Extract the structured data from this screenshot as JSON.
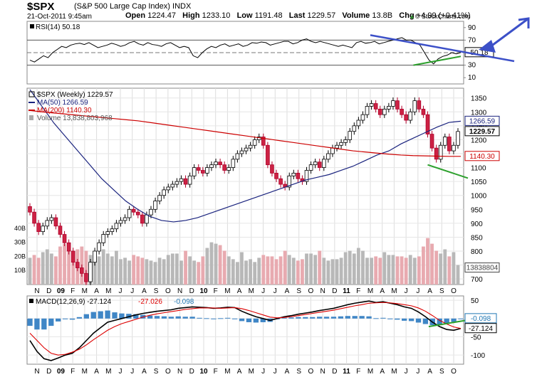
{
  "header": {
    "ticker": "$SPX",
    "company": "(S&P 500 Large Cap Index)",
    "exchange": "INDX",
    "date": "21-Oct-2011 9:45am",
    "open_label": "Open",
    "open": "1224.47",
    "high_label": "High",
    "high": "1233.10",
    "low_label": "Low",
    "low": "1191.48",
    "last_label": "Last",
    "last": "1229.57",
    "volume_label": "Volume",
    "volume": "13.8B",
    "chg_label": "Chg",
    "chg": "+4.99 (+0.41%)",
    "credit": "© StockCharts.com"
  },
  "chart_data": [
    {
      "type": "line",
      "panel": "RSI",
      "legend": "RSI(14) 50.18",
      "yticks": [
        10,
        30,
        50,
        70,
        90
      ],
      "ylim": [
        0,
        100
      ],
      "reference_lines": [
        30,
        70
      ],
      "current_value": 50.18,
      "current_label": "50.18",
      "series": [
        {
          "name": "RSI(14)",
          "values": [
            38,
            35,
            40,
            45,
            42,
            50,
            55,
            60,
            58,
            62,
            64,
            65,
            63,
            66,
            62,
            58,
            60,
            62,
            65,
            63,
            60,
            62,
            66,
            68,
            64,
            62,
            66,
            63,
            62,
            60,
            64,
            66,
            62,
            58,
            60,
            58,
            45,
            42,
            50,
            56,
            60,
            58,
            62,
            64,
            60,
            62,
            64,
            60,
            62,
            66,
            65,
            67,
            66,
            62,
            64,
            66,
            68,
            68,
            64,
            66,
            70,
            72,
            68,
            66,
            68,
            66,
            64,
            62,
            60,
            62,
            60,
            58,
            66,
            68,
            65,
            66,
            68,
            64,
            66,
            68,
            70,
            72,
            74,
            70,
            70,
            66,
            62,
            50,
            38,
            32,
            40,
            44,
            46,
            50,
            48,
            50.18
          ],
          "color": "#000000"
        }
      ],
      "annotations": [
        {
          "kind": "trendline",
          "color": "#3c50c8",
          "from": [
            79,
            78
          ],
          "to": [
            100,
            62
          ]
        },
        {
          "kind": "trendline",
          "color": "#2ca02c",
          "from": [
            89,
            30
          ],
          "to": [
            100,
            44
          ]
        }
      ]
    },
    {
      "type": "candlestick",
      "panel": "price",
      "legend": [
        "$SPX (Weekly) 1229.57",
        "MA(50) 1266.59",
        "MA(200) 1140.30",
        "Volume 13,838,803,968"
      ],
      "x_ticks": [
        "N",
        "D",
        "09",
        "F",
        "M",
        "A",
        "M",
        "J",
        "J",
        "A",
        "S",
        "O",
        "N",
        "D",
        "10",
        "F",
        "M",
        "A",
        "M",
        "J",
        "J",
        "A",
        "S",
        "O",
        "N",
        "D",
        "11",
        "F",
        "M",
        "A",
        "M",
        "J",
        "J",
        "A",
        "S",
        "O"
      ],
      "yticks": [
        700,
        750,
        800,
        850,
        900,
        950,
        1000,
        1050,
        1100,
        1150,
        1200,
        1250,
        1300,
        1350
      ],
      "ylim": [
        680,
        1385
      ],
      "volume_ticks": [
        "10B",
        "20B",
        "30B",
        "40B"
      ],
      "volume_ylim": [
        0,
        48
      ],
      "badges": [
        {
          "label": "1266.59",
          "value": 1266.59,
          "color": "#1a237e"
        },
        {
          "label": "1229.57",
          "value": 1229.57,
          "color": "#000000",
          "bold": true
        },
        {
          "label": "1140.30",
          "value": 1140.3,
          "color": "#cc0000"
        },
        {
          "label": "13838804",
          "volume": 13.84,
          "color": "#444444"
        }
      ],
      "close": [
        940,
        900,
        870,
        890,
        910,
        920,
        890,
        860,
        830,
        800,
        760,
        740,
        720,
        690,
        760,
        800,
        830,
        860,
        870,
        880,
        900,
        910,
        920,
        950,
        940,
        930,
        900,
        930,
        950,
        980,
        1000,
        1020,
        1030,
        1040,
        1050,
        1060,
        1040,
        1070,
        1100,
        1090,
        1080,
        1100,
        1110,
        1120,
        1110,
        1090,
        1100,
        1130,
        1150,
        1160,
        1170,
        1180,
        1200,
        1210,
        1180,
        1110,
        1080,
        1060,
        1040,
        1030,
        1070,
        1080,
        1060,
        1050,
        1090,
        1110,
        1120,
        1100,
        1130,
        1150,
        1170,
        1180,
        1190,
        1200,
        1230,
        1250,
        1270,
        1290,
        1320,
        1330,
        1310,
        1290,
        1310,
        1320,
        1340,
        1310,
        1290,
        1270,
        1300,
        1340,
        1310,
        1290,
        1220,
        1170,
        1130,
        1180,
        1210,
        1160,
        1180,
        1229.57
      ],
      "volume": [
        19,
        21,
        19,
        23,
        25,
        22,
        20,
        27,
        29,
        28,
        24,
        25,
        27,
        24,
        21,
        22,
        20,
        25,
        22,
        20,
        24,
        18,
        19,
        17,
        21,
        20,
        19,
        18,
        17,
        16,
        19,
        18,
        21,
        22,
        22,
        17,
        24,
        20,
        17,
        16,
        20,
        26,
        30,
        29,
        28,
        24,
        20,
        18,
        16,
        23,
        17,
        18,
        16,
        19,
        21,
        20,
        20,
        18,
        20,
        24,
        21,
        19,
        17,
        18,
        22,
        22,
        21,
        24,
        19,
        17,
        18,
        18,
        19,
        23,
        24,
        22,
        26,
        24,
        19,
        19,
        20,
        19,
        23,
        21,
        21,
        20,
        20,
        19,
        21,
        19,
        20,
        27,
        33,
        29,
        24,
        22,
        25,
        20,
        23,
        13.84
      ],
      "series": [
        {
          "name": "MA(50)",
          "color": "#1a237e",
          "values": [
            1380,
            1320,
            1260,
            1210,
            1160,
            1110,
            1060,
            1020,
            980,
            950,
            925,
            910,
            905,
            910,
            920,
            935,
            950,
            965,
            980,
            995,
            1010,
            1025,
            1040,
            1055,
            1065,
            1075,
            1090,
            1105,
            1125,
            1145,
            1160,
            1185,
            1205,
            1225,
            1245,
            1262,
            1266.59
          ]
        },
        {
          "name": "MA(200)",
          "color": "#cc0000",
          "values": [
            1305,
            1300,
            1296,
            1292,
            1288,
            1284,
            1280,
            1276,
            1272,
            1268,
            1262,
            1256,
            1250,
            1244,
            1238,
            1232,
            1226,
            1220,
            1214,
            1208,
            1202,
            1196,
            1190,
            1184,
            1178,
            1172,
            1166,
            1160,
            1156,
            1152,
            1148,
            1145,
            1143,
            1142,
            1141,
            1140.3,
            1140.3
          ]
        }
      ],
      "annotations": [
        {
          "kind": "trendline",
          "color": "#2ca02c",
          "from": [
            92,
            1110
          ],
          "to": [
            100,
            1062
          ]
        }
      ]
    },
    {
      "type": "line",
      "panel": "MACD",
      "legend": [
        "MACD(12,26,9) -27.124",
        "-27.026",
        "-0.098"
      ],
      "yticks": [
        -100,
        -50,
        0,
        50
      ],
      "ylim": [
        -125,
        62
      ],
      "badges": [
        {
          "label": "-0.098",
          "value": -0.098,
          "color": "#1f77b4"
        },
        {
          "label": "-27.124",
          "value": -27.124,
          "color": "#000000"
        }
      ],
      "series": [
        {
          "name": "MACD(12,26,9)",
          "color": "#000000",
          "values": [
            -60,
            -90,
            -110,
            -115,
            -108,
            -100,
            -95,
            -80,
            -60,
            -40,
            -25,
            -10,
            -5,
            0,
            5,
            10,
            14,
            17,
            20,
            22,
            24,
            28,
            30,
            32,
            31,
            30,
            28,
            29,
            31,
            30,
            20,
            12,
            5,
            0,
            -5,
            0,
            5,
            8,
            12,
            15,
            18,
            22,
            25,
            28,
            33,
            38,
            42,
            45,
            48,
            44,
            46,
            42,
            38,
            32,
            28,
            18,
            5,
            -10,
            -22,
            -30,
            -32,
            -27.124
          ]
        },
        {
          "name": "Signal",
          "color": "#dd0000",
          "values": [
            -40,
            -60,
            -80,
            -95,
            -100,
            -98,
            -92,
            -84,
            -72,
            -58,
            -45,
            -32,
            -22,
            -14,
            -8,
            -2,
            4,
            9,
            13,
            16,
            19,
            22,
            25,
            27,
            29,
            29,
            29,
            28,
            29,
            30,
            27,
            22,
            16,
            10,
            4,
            2,
            3,
            5,
            8,
            11,
            14,
            17,
            20,
            23,
            27,
            31,
            35,
            38,
            42,
            43,
            44,
            43,
            41,
            38,
            35,
            29,
            20,
            8,
            -5,
            -15,
            -23,
            -27.026
          ]
        },
        {
          "name": "Histogram",
          "color": "#1f77b4",
          "values": [
            -20,
            -30,
            -30,
            -20,
            -8,
            -2,
            -3,
            4,
            12,
            18,
            20,
            22,
            17,
            14,
            13,
            12,
            10,
            8,
            7,
            6,
            5,
            6,
            5,
            5,
            2,
            1,
            -1,
            1,
            2,
            0,
            -7,
            -10,
            -11,
            -10,
            -9,
            -2,
            2,
            3,
            4,
            4,
            4,
            5,
            5,
            5,
            6,
            7,
            7,
            7,
            6,
            1,
            2,
            -1,
            -3,
            -6,
            -7,
            -11,
            -15,
            -18,
            -17,
            -15,
            -9,
            -0.098
          ]
        }
      ],
      "annotations": [
        {
          "kind": "trendline",
          "color": "#2ca02c",
          "from": [
            0.92,
            -22
          ],
          "to": [
            1.0,
            -4
          ]
        }
      ]
    }
  ]
}
